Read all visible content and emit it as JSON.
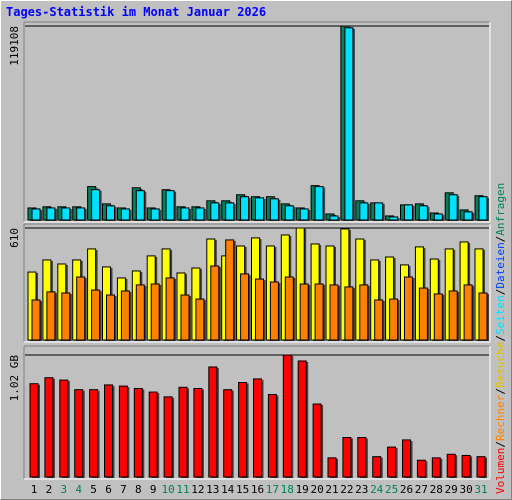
{
  "chart_data": [
    {
      "type": "bar",
      "title": "Tages-Statistik im Monat Januar 2026",
      "series": [
        {
          "name": "Anfragen",
          "color": "#00805c",
          "values": [
            7400,
            8100,
            8100,
            8100,
            20500,
            9900,
            7400,
            19800,
            7400,
            18600,
            8100,
            8100,
            11800,
            11800,
            15500,
            14300,
            14300,
            9900,
            7400,
            21100,
            3700,
            119108,
            11800,
            10500,
            2500,
            9300,
            9900,
            4300,
            16700,
            6200,
            14900
          ]
        },
        {
          "name": "Dateien",
          "color": "#0040ff",
          "values": [
            0,
            0,
            0,
            0,
            0,
            0,
            0,
            0,
            0,
            0,
            0,
            0,
            0,
            0,
            0,
            0,
            0,
            0,
            0,
            0,
            0,
            0,
            0,
            0,
            0,
            0,
            0,
            0,
            0,
            0,
            0
          ]
        },
        {
          "name": "Seiten",
          "color": "#00e0ff",
          "values": [
            6800,
            7400,
            7400,
            7400,
            18600,
            8700,
            6800,
            18000,
            6800,
            18000,
            7400,
            7400,
            10500,
            10500,
            14300,
            13600,
            13000,
            8700,
            6800,
            20500,
            2500,
            118000,
            10500,
            10500,
            1900,
            9300,
            8700,
            3700,
            15500,
            5000,
            14300
          ]
        }
      ],
      "ylim": [
        0,
        119108
      ],
      "yticks": [
        119108
      ]
    },
    {
      "type": "bar",
      "series": [
        {
          "name": "Besuche",
          "color": "#ffff00",
          "values": [
            370,
            436,
            414,
            436,
            496,
            398,
            338,
            376,
            458,
            496,
            365,
            392,
            550,
            458,
            512,
            556,
            512,
            572,
            610,
            523,
            512,
            605,
            550,
            436,
            452,
            409,
            507,
            441,
            496,
            534,
            496
          ]
        },
        {
          "name": "Rechner",
          "color": "#ff8000",
          "values": [
            218,
            262,
            256,
            343,
            272,
            245,
            267,
            300,
            305,
            338,
            245,
            223,
            403,
            545,
            360,
            332,
            316,
            343,
            305,
            305,
            300,
            289,
            300,
            218,
            223,
            343,
            283,
            251,
            267,
            300,
            256
          ]
        }
      ],
      "ylim": [
        0,
        610
      ],
      "yticks": [
        610
      ]
    },
    {
      "type": "bar",
      "categories": [
        "1",
        "2",
        "3",
        "4",
        "5",
        "6",
        "7",
        "8",
        "9",
        "10",
        "11",
        "12",
        "13",
        "14",
        "15",
        "16",
        "17",
        "18",
        "19",
        "20",
        "21",
        "22",
        "23",
        "24",
        "25",
        "26",
        "27",
        "28",
        "29",
        "30",
        "31"
      ],
      "label_colors": [
        "#000000",
        "#000000",
        "#00805c",
        "#00805c",
        "#000000",
        "#000000",
        "#000000",
        "#000000",
        "#000000",
        "#00805c",
        "#00805c",
        "#000000",
        "#000000",
        "#000000",
        "#000000",
        "#000000",
        "#00805c",
        "#00805c",
        "#000000",
        "#000000",
        "#000000",
        "#000000",
        "#000000",
        "#00805c",
        "#00805c",
        "#000000",
        "#000000",
        "#000000",
        "#000000",
        "#000000",
        "#00805c"
      ],
      "series": [
        {
          "name": "Volumen",
          "color": "#ff0000",
          "values": [
            0.78,
            0.83,
            0.81,
            0.73,
            0.73,
            0.77,
            0.76,
            0.74,
            0.71,
            0.67,
            0.75,
            0.74,
            0.92,
            0.73,
            0.79,
            0.82,
            0.69,
            1.02,
            0.97,
            0.61,
            0.16,
            0.33,
            0.33,
            0.17,
            0.25,
            0.31,
            0.14,
            0.16,
            0.19,
            0.18,
            0.17
          ]
        }
      ],
      "ylim": [
        0,
        1.02
      ],
      "yticks": [
        {
          "value": 1.02,
          "label": "1.02 GB"
        }
      ]
    }
  ],
  "legend_separator": "/"
}
